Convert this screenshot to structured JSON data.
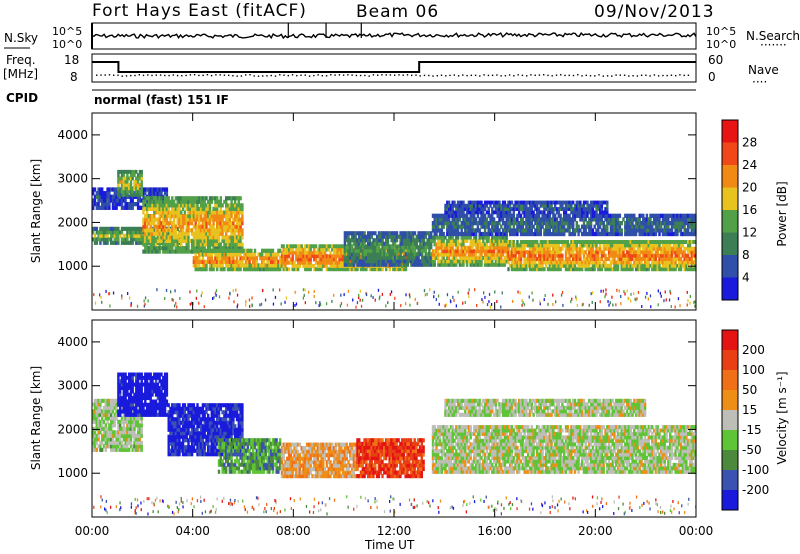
{
  "header": {
    "station": "Fort Hays East (fitACF)",
    "beam": "Beam 06",
    "date": "09/Nov/2013"
  },
  "top_panel": {
    "left_label": "N.Sky",
    "left_ticks": [
      "10^5",
      "10^0"
    ],
    "right_ticks": [
      "10^5",
      "10^0"
    ],
    "right_label": "N.Search"
  },
  "freq_panel": {
    "left_label_line1": "Freq.",
    "left_label_line2": "[MHz]",
    "left_ticks": [
      "18",
      "8"
    ],
    "right_ticks": [
      "60",
      "0"
    ],
    "right_label": "Nave"
  },
  "cpid": {
    "label": "CPID",
    "value": "normal (fast) 151 IF"
  },
  "x_axis": {
    "label": "Time UT",
    "ticks": [
      "00:00",
      "04:00",
      "08:00",
      "12:00",
      "16:00",
      "20:00",
      "00:00"
    ]
  },
  "colors": {
    "power": [
      "#1a1adc",
      "#2f4fa8",
      "#3c7f54",
      "#52a048",
      "#e8c21f",
      "#f08a14",
      "#f04818",
      "#e81414"
    ],
    "velocity": [
      "#1a1adc",
      "#3a52b0",
      "#4b8a3c",
      "#5fc436",
      "#bebeb8",
      "#ef8e16",
      "#f07018",
      "#e84014",
      "#e41414"
    ]
  },
  "chart_data": [
    {
      "type": "heatmap",
      "panel": "power",
      "ylabel": "Slant Range [km]",
      "ylim": [
        0,
        4500
      ],
      "yticks": [
        "1000",
        "2000",
        "3000",
        "4000"
      ],
      "xlim_hours": [
        0,
        24
      ],
      "colorbar": {
        "label": "Power [dB]",
        "ticks": [
          "28",
          "24",
          "20",
          "16",
          "12",
          "8",
          "4"
        ]
      },
      "bands": [
        {
          "t": [
            0.0,
            3.5
          ],
          "r": [
            1500,
            1900
          ],
          "level": 0.55
        },
        {
          "t": [
            0.0,
            3.0
          ],
          "r": [
            2300,
            2800
          ],
          "level": 0.2
        },
        {
          "t": [
            1.0,
            2.0
          ],
          "r": [
            2600,
            3200
          ],
          "level": 0.6
        },
        {
          "t": [
            2.0,
            6.0
          ],
          "r": [
            1300,
            2600
          ],
          "level": 0.7
        },
        {
          "t": [
            4.0,
            7.5
          ],
          "r": [
            900,
            1400
          ],
          "level": 0.8
        },
        {
          "t": [
            7.5,
            12.5
          ],
          "r": [
            900,
            1500
          ],
          "level": 0.85
        },
        {
          "t": [
            10.0,
            13.5
          ],
          "r": [
            1000,
            1800
          ],
          "level": 0.4
        },
        {
          "t": [
            13.5,
            16.5
          ],
          "r": [
            1000,
            1700
          ],
          "level": 0.75
        },
        {
          "t": [
            16.5,
            24.0
          ],
          "r": [
            900,
            1600
          ],
          "level": 0.8
        },
        {
          "t": [
            13.5,
            24.0
          ],
          "r": [
            1700,
            2200
          ],
          "level": 0.3
        },
        {
          "t": [
            14.0,
            20.5
          ],
          "r": [
            2200,
            2500
          ],
          "level": 0.25
        }
      ]
    },
    {
      "type": "heatmap",
      "panel": "velocity",
      "ylabel": "Slant Range [km]",
      "ylim": [
        0,
        4500
      ],
      "yticks": [
        "1000",
        "2000",
        "3000",
        "4000"
      ],
      "xlim_hours": [
        0,
        24
      ],
      "colorbar": {
        "label": "Velocity [m s⁻¹]",
        "ticks": [
          "200",
          "100",
          "50",
          "15",
          "-15",
          "-50",
          "-100",
          "-200"
        ]
      },
      "bands": [
        {
          "t": [
            0.0,
            2.0
          ],
          "r": [
            1500,
            2700
          ],
          "level": 0.45
        },
        {
          "t": [
            1.0,
            3.0
          ],
          "r": [
            2300,
            3300
          ],
          "level": 0.0
        },
        {
          "t": [
            3.0,
            6.0
          ],
          "r": [
            1400,
            2600
          ],
          "level": 0.05
        },
        {
          "t": [
            5.0,
            7.5
          ],
          "r": [
            1000,
            1800
          ],
          "level": 0.3
        },
        {
          "t": [
            7.5,
            10.5
          ],
          "r": [
            900,
            1700
          ],
          "level": 0.6
        },
        {
          "t": [
            10.5,
            13.2
          ],
          "r": [
            900,
            1800
          ],
          "level": 0.85
        },
        {
          "t": [
            13.5,
            24.0
          ],
          "r": [
            1000,
            2100
          ],
          "level": 0.47
        },
        {
          "t": [
            14.0,
            22.0
          ],
          "r": [
            2300,
            2700
          ],
          "level": 0.47
        }
      ]
    }
  ]
}
